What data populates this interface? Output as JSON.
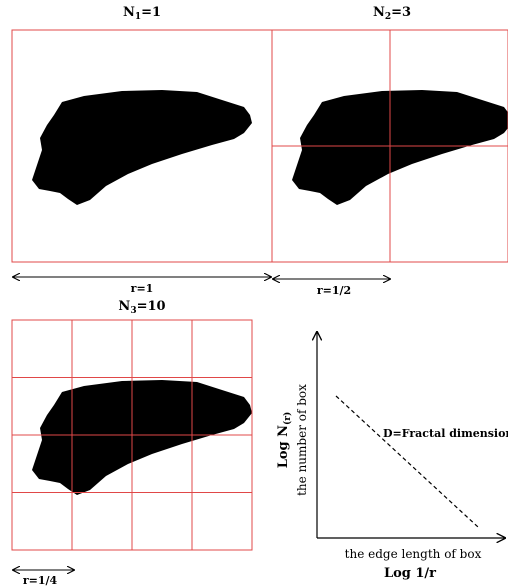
{
  "panels": [
    {
      "id": "p1",
      "count_base": "N",
      "count_sub": "1",
      "count_value": "=1",
      "edge_label": "r=1",
      "grid_divisions": 1
    },
    {
      "id": "p2",
      "count_base": "N",
      "count_sub": "2",
      "count_value": "=3",
      "edge_label": "r=1/2",
      "grid_divisions": 2
    },
    {
      "id": "p3",
      "count_base": "N",
      "count_sub": "3",
      "count_value": "=10",
      "edge_label": "r=1/4",
      "grid_divisions": 4
    }
  ],
  "loglog": {
    "y_label_main": "Log N",
    "y_label_sub": "(r)",
    "y_caption": "the number of box",
    "x_caption": "the edge length of box",
    "x_label": "Log 1/r",
    "slope_label": "D=Fractal dimension"
  },
  "colors": {
    "grid": "#e04848",
    "blob": "#000000",
    "axis": "#000000"
  }
}
